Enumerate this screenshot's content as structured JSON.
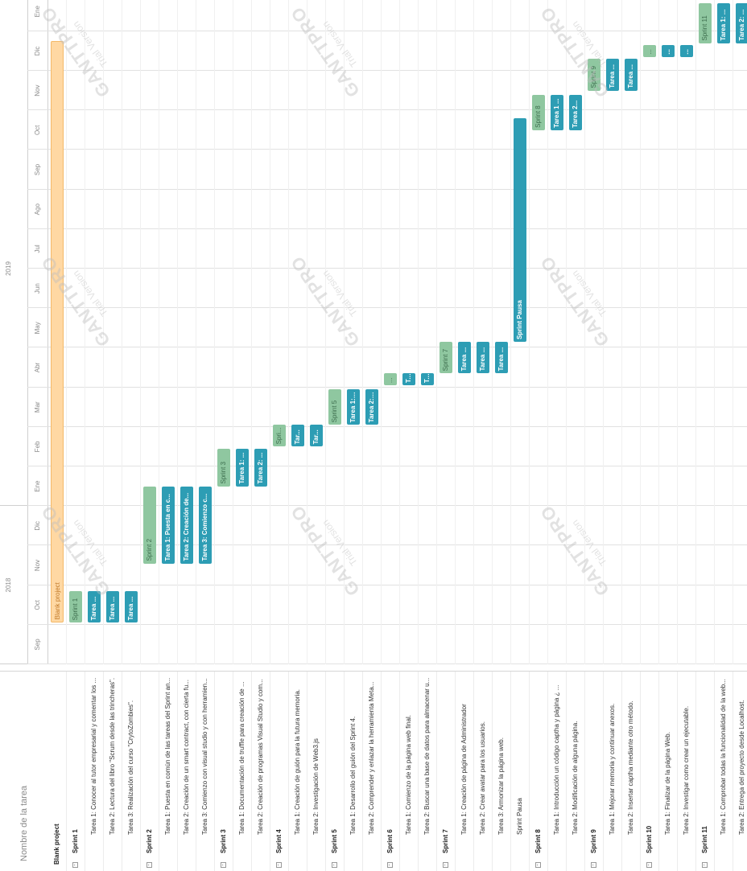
{
  "grid": {
    "header": "Nombre de la tarea",
    "rows": [
      {
        "label": "Blank project",
        "type": "project"
      },
      {
        "label": "Sprint 1",
        "type": "group"
      },
      {
        "label": "Tarea 1: Conocer al tutor empresarial y comentar los ...",
        "type": "task"
      },
      {
        "label": "Tarea 2: Lectura del libro \"Scrum desde las trincheras\".",
        "type": "task"
      },
      {
        "label": "Tarea 3: Realización del curso \"CrytoZombies\".",
        "type": "task"
      },
      {
        "label": "Sprint 2",
        "type": "group"
      },
      {
        "label": "Tarea 1: Puesta en común de las tareas del Sprint an...",
        "type": "task"
      },
      {
        "label": "Tarea 2: Creación de un smart contract, con cierta fu...",
        "type": "task"
      },
      {
        "label": "Tarea 3: Comienzo con visual studio y con herramien...",
        "type": "task"
      },
      {
        "label": "Sprint 3",
        "type": "group"
      },
      {
        "label": "Tarea 1: Documentación de truffle para creación de ...",
        "type": "task"
      },
      {
        "label": "Tarea 2: Creación de programas Visual Studio y com...",
        "type": "task"
      },
      {
        "label": "Sprint 4",
        "type": "group"
      },
      {
        "label": "Tarea 1: Creación de guión para la futura memoria.",
        "type": "task"
      },
      {
        "label": "Tarea 2: Investigación de Web3.js",
        "type": "task"
      },
      {
        "label": "Sprint 5",
        "type": "group"
      },
      {
        "label": "Tarea 1: Desarrollo del guión del Sprint 4.",
        "type": "task"
      },
      {
        "label": "Tarea 2: Comprender y enlazar la herramienta Meta...",
        "type": "task"
      },
      {
        "label": "Sprint 6",
        "type": "group"
      },
      {
        "label": "Tarea 1: Comienzo de la página web final.",
        "type": "task"
      },
      {
        "label": "Tarea 2: Buscar una base de datos para almacenar u...",
        "type": "task"
      },
      {
        "label": "Sprint 7",
        "type": "group"
      },
      {
        "label": "Tarea 1: Creación de página de Administrador",
        "type": "task"
      },
      {
        "label": "Tarea 2: Crear avatar para los usuarios.",
        "type": "task"
      },
      {
        "label": "Tarea 3: Armonizar la página web.",
        "type": "task"
      },
      {
        "label": "Sprint Pausa",
        "type": "task"
      },
      {
        "label": "Sprint 8",
        "type": "group"
      },
      {
        "label": "Tarea 1: Introducción un código captha y página ¿ ...",
        "type": "task"
      },
      {
        "label": "Tarea 2: Modificación de alguna página.",
        "type": "task"
      },
      {
        "label": "Sprint 9",
        "type": "group"
      },
      {
        "label": "Tarea 1: Mejorar memoria y continuar anexos.",
        "type": "task"
      },
      {
        "label": "Tarea 2: Insertar captha mediante otro método.",
        "type": "task"
      },
      {
        "label": "Sprint 10",
        "type": "group"
      },
      {
        "label": "Tarea 1: Finalizar de la página Web.",
        "type": "task"
      },
      {
        "label": "Tarea 2: Investigar como crear un ejecutable.",
        "type": "task"
      },
      {
        "label": "Sprint 11",
        "type": "group"
      },
      {
        "label": "Tarea 1: Comprobar todas la funcionalidad de la web...",
        "type": "task"
      },
      {
        "label": "Tarea 2: Entrega del proyecto desde Localhost.",
        "type": "task"
      }
    ]
  },
  "timeline": {
    "years": [
      {
        "label": "2018",
        "start": 0,
        "end": 4
      },
      {
        "label": "2019",
        "start": 4,
        "end": 16
      }
    ],
    "months": [
      "Sep",
      "Oct",
      "Nov",
      "Dic",
      "Ene",
      "Feb",
      "Mar",
      "Abr",
      "May",
      "Jun",
      "Jul",
      "Ago",
      "Sep",
      "Oct",
      "Nov",
      "Dic",
      "Ene"
    ]
  },
  "bars": [
    {
      "row": 0,
      "label": "Blank project",
      "kind": "project",
      "start": 1.05,
      "end": 15.75
    },
    {
      "row": 1,
      "label": "Sprint 1",
      "kind": "sprint",
      "start": 1.05,
      "end": 1.85
    },
    {
      "row": 2,
      "label": "Tarea ...",
      "kind": "task",
      "start": 1.05,
      "end": 1.85
    },
    {
      "row": 3,
      "label": "Tarea ...",
      "kind": "task",
      "start": 1.05,
      "end": 1.85
    },
    {
      "row": 4,
      "label": "Tarea ...",
      "kind": "task",
      "start": 1.05,
      "end": 1.85
    },
    {
      "row": 5,
      "label": "Sprint 2",
      "kind": "sprint",
      "start": 2.55,
      "end": 4.5
    },
    {
      "row": 6,
      "label": "Tarea 1: Puesta en c...",
      "kind": "task",
      "start": 2.55,
      "end": 4.5
    },
    {
      "row": 7,
      "label": "Tarea 2: Creación de...",
      "kind": "task",
      "start": 2.55,
      "end": 4.5
    },
    {
      "row": 8,
      "label": "Tarea 3: Comienzo c...",
      "kind": "task",
      "start": 2.55,
      "end": 4.5
    },
    {
      "row": 9,
      "label": "Sprint 3",
      "kind": "sprint",
      "start": 4.5,
      "end": 5.45
    },
    {
      "row": 10,
      "label": "Tarea 1: ...",
      "kind": "task",
      "start": 4.5,
      "end": 5.45
    },
    {
      "row": 11,
      "label": "Tarea 2: ...",
      "kind": "task",
      "start": 4.5,
      "end": 5.45
    },
    {
      "row": 12,
      "label": "Spri...",
      "kind": "sprint",
      "start": 5.5,
      "end": 6.05
    },
    {
      "row": 13,
      "label": "Tar...",
      "kind": "task",
      "start": 5.5,
      "end": 6.05
    },
    {
      "row": 14,
      "label": "Tar...",
      "kind": "task",
      "start": 5.5,
      "end": 6.05
    },
    {
      "row": 15,
      "label": "Sprint 5",
      "kind": "sprint",
      "start": 6.05,
      "end": 6.95
    },
    {
      "row": 16,
      "label": "Tarea 1: ...",
      "kind": "task",
      "start": 6.05,
      "end": 6.95
    },
    {
      "row": 17,
      "label": "Tarea 2: ...",
      "kind": "task",
      "start": 6.05,
      "end": 6.95
    },
    {
      "row": 18,
      "label": "...",
      "kind": "sprint",
      "start": 7.05,
      "end": 7.35
    },
    {
      "row": 19,
      "label": "T...",
      "kind": "task",
      "start": 7.05,
      "end": 7.35
    },
    {
      "row": 20,
      "label": "T...",
      "kind": "task",
      "start": 7.05,
      "end": 7.35
    },
    {
      "row": 21,
      "label": "Sprint 7",
      "kind": "sprint",
      "start": 7.35,
      "end": 8.15
    },
    {
      "row": 22,
      "label": "Tarea ...",
      "kind": "task",
      "start": 7.35,
      "end": 8.15
    },
    {
      "row": 23,
      "label": "Tarea ...",
      "kind": "task",
      "start": 7.35,
      "end": 8.15
    },
    {
      "row": 24,
      "label": "Tarea ...",
      "kind": "task",
      "start": 7.35,
      "end": 8.15
    },
    {
      "row": 25,
      "label": "Sprint Pausa",
      "kind": "task",
      "start": 8.15,
      "end": 13.8
    },
    {
      "row": 26,
      "label": "Sprint 8",
      "kind": "sprint",
      "start": 13.5,
      "end": 14.4
    },
    {
      "row": 27,
      "label": "Tarea 1 ...",
      "kind": "task",
      "start": 13.5,
      "end": 14.4
    },
    {
      "row": 28,
      "label": "Tarea 2...",
      "kind": "task",
      "start": 13.5,
      "end": 14.4
    },
    {
      "row": 29,
      "label": "Sprint 9",
      "kind": "sprint",
      "start": 14.5,
      "end": 15.3
    },
    {
      "row": 30,
      "label": "Tarea ...",
      "kind": "task",
      "start": 14.5,
      "end": 15.3
    },
    {
      "row": 31,
      "label": "Tarea ...",
      "kind": "task",
      "start": 14.5,
      "end": 15.3
    },
    {
      "row": 32,
      "label": "...",
      "kind": "sprint",
      "start": 15.35,
      "end": 15.65
    },
    {
      "row": 33,
      "label": "...",
      "kind": "task",
      "start": 15.35,
      "end": 15.65
    },
    {
      "row": 34,
      "label": "...",
      "kind": "task",
      "start": 15.35,
      "end": 15.65
    },
    {
      "row": 35,
      "label": "Sprint 11",
      "kind": "sprint",
      "start": 15.7,
      "end": 16.7
    },
    {
      "row": 36,
      "label": "Tarea 1: ...",
      "kind": "task",
      "start": 15.7,
      "end": 16.7
    },
    {
      "row": 37,
      "label": "Tarea 2: ...",
      "kind": "task",
      "start": 15.7,
      "end": 16.7
    }
  ],
  "watermark": {
    "brand": "GANTTPRO",
    "note": "Trial Version"
  }
}
